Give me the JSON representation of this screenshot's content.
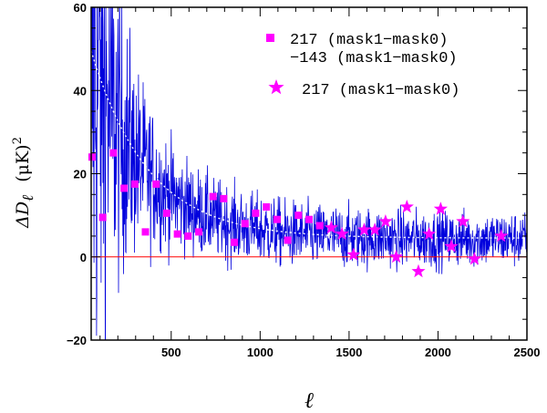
{
  "chart_data": {
    "type": "scatter",
    "xlabel": "ℓ",
    "ylabel": "ΔD",
    "ylabel_sub": "ℓ",
    "ylabel_unit": "(μK)",
    "ylabel_power": "2",
    "xlim": [
      50,
      2500
    ],
    "ylim": [
      -20,
      60
    ],
    "x_ticks": [
      500,
      1000,
      1500,
      2000,
      2500
    ],
    "x_tick_labels": [
      "500",
      "1000",
      "1500",
      "2000",
      "2500"
    ],
    "y_ticks": [
      -20,
      0,
      20,
      40,
      60
    ],
    "y_tick_labels": [
      "−20",
      "0",
      "20",
      "40",
      "60"
    ],
    "colors": {
      "noise": "#0000dd",
      "markers": "#ff00ff",
      "zero_line": "#ff0000",
      "fit": "#ffffff"
    },
    "series": [
      {
        "name": "217 (mask1−mask0) −143 (mask1−mask0)",
        "legend_lines": [
          "217 (mask1−mask0)",
          "−143 (mask1−mask0)"
        ],
        "marker": "square",
        "x": [
          55,
          115,
          175,
          235,
          295,
          355,
          415,
          475,
          535,
          595,
          655,
          735,
          795,
          855,
          915,
          975,
          1035,
          1095,
          1155,
          1215,
          1275,
          1335
        ],
        "y": [
          24,
          9.5,
          25,
          16.5,
          17.5,
          6,
          17.5,
          10.5,
          5.5,
          5,
          6,
          14.5,
          14,
          3.5,
          8,
          10.5,
          12,
          9,
          4,
          10,
          9,
          7.5
        ]
      },
      {
        "name": "217 (mask1−mask0)",
        "legend_lines": [
          "217 (mask1−mask0)"
        ],
        "marker": "star",
        "x": [
          1400,
          1460,
          1525,
          1585,
          1645,
          1705,
          1765,
          1825,
          1890,
          1950,
          2015,
          2075,
          2140,
          2205,
          2355
        ],
        "y": [
          7,
          5.5,
          0.5,
          6.5,
          6.5,
          8.5,
          0,
          12,
          -3.5,
          5.5,
          11.5,
          2.5,
          8.5,
          -0.5,
          5
        ]
      }
    ],
    "fit_curve": {
      "style": "dotted",
      "asymptote": 4.5,
      "amplitude": 45,
      "decay_scale": 320
    },
    "zero_line": 0
  }
}
